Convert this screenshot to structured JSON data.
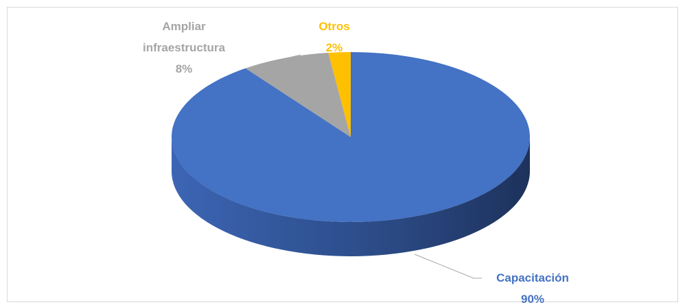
{
  "chart_data": {
    "type": "pie3d",
    "categories": [
      "Capacitación",
      "Ampliar infraestructura",
      "Otros"
    ],
    "values": [
      90,
      8,
      2
    ],
    "value_labels": [
      "90%",
      "8%",
      "2%"
    ],
    "colors": [
      "#4472c4",
      "#a5a5a5",
      "#ffc000"
    ]
  }
}
